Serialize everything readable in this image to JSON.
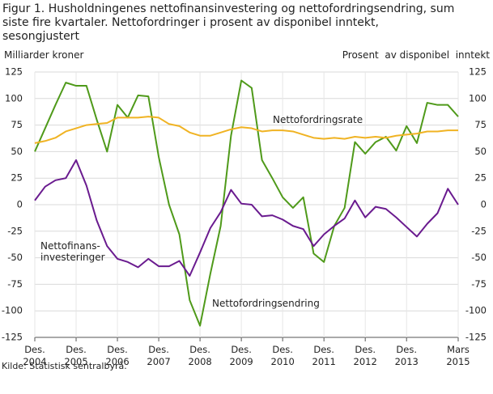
{
  "chart_data": {
    "type": "line",
    "title": "Figur 1. Husholdningenes nettofinansinvestering og nettofordringsendring, sum siste fire kvartaler. Nettofordringer i prosent av disponibel inntekt, sesongjustert",
    "y_label": "Milliarder  kroner",
    "y2_label": "Prosent  av disponibel  inntekt",
    "source": "Kilde: Statistisk sentralbyrå.",
    "categories": [
      "Des. 2004",
      null,
      null,
      null,
      "Des. 2005",
      null,
      null,
      null,
      "Des. 2006",
      null,
      null,
      null,
      "Des. 2007",
      null,
      null,
      null,
      "Des. 2008",
      null,
      null,
      null,
      "Des. 2009",
      null,
      null,
      null,
      "Des. 2010",
      null,
      null,
      null,
      "Des. 2011",
      null,
      null,
      null,
      "Des. 2012",
      null,
      null,
      null,
      "Des. 2013",
      null,
      null,
      null,
      null,
      "Mars 2015"
    ],
    "series": [
      {
        "name": "Nettofordringsendring",
        "color": "#4f9a1a",
        "values": [
          50,
          72,
          94,
          115,
          112,
          112,
          80,
          50,
          94,
          82,
          103,
          102,
          45,
          0,
          -28,
          -90,
          -114,
          -65,
          -20,
          65,
          117,
          110,
          42,
          25,
          7,
          -3,
          7,
          -46,
          -54,
          -20,
          -3,
          59,
          48,
          59,
          64,
          51,
          74,
          58,
          96,
          94,
          94,
          83
        ]
      },
      {
        "name": "Nettofinans-investeringer",
        "color": "#6a1b8f",
        "values": [
          4,
          17,
          23,
          25,
          42,
          18,
          -15,
          -39,
          -51,
          -54,
          -59,
          -51,
          -58,
          -58,
          -53,
          -67,
          -45,
          -22,
          -7,
          14,
          1,
          0,
          -11,
          -10,
          -14,
          -20,
          -23,
          -39,
          -28,
          -20,
          -13,
          4,
          -12,
          -2,
          -4,
          -12,
          -21,
          -30,
          -18,
          -8,
          15,
          0
        ]
      },
      {
        "name": "Nettofordringsrate",
        "color": "#f0b323",
        "axis": "y2",
        "values": [
          58,
          60,
          63,
          69,
          72,
          75,
          76,
          77,
          82,
          82,
          82,
          83,
          82,
          76,
          74,
          68,
          65,
          65,
          68,
          71,
          73,
          72,
          69,
          70,
          70,
          69,
          66,
          63,
          62,
          63,
          62,
          64,
          63,
          64,
          63,
          65,
          66,
          67,
          69,
          69,
          70,
          70
        ]
      }
    ],
    "ylim": [
      -125,
      125
    ],
    "yticks": [
      -125,
      -100,
      -75,
      -50,
      -25,
      0,
      25,
      50,
      75,
      100,
      125
    ],
    "y2lim": [
      -125,
      125
    ],
    "y2ticks": [
      -125,
      -100,
      -75,
      -50,
      -25,
      0,
      25,
      50,
      75,
      100,
      125
    ],
    "grid": true
  }
}
